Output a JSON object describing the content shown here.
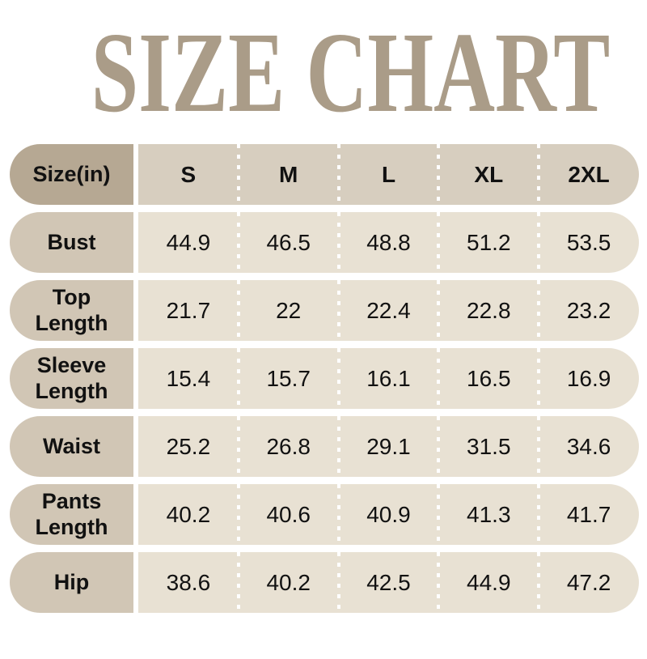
{
  "chart_data": {
    "type": "table",
    "title": "SIZE CHART",
    "corner_header": "Size(in)",
    "columns": [
      "S",
      "M",
      "L",
      "XL",
      "2XL"
    ],
    "rows": [
      {
        "label": "Bust",
        "values": [
          44.9,
          46.5,
          48.8,
          51.2,
          53.5
        ]
      },
      {
        "label": "Top Length",
        "values": [
          21.7,
          22,
          22.4,
          22.8,
          23.2
        ]
      },
      {
        "label": "Sleeve Length",
        "values": [
          15.4,
          15.7,
          16.1,
          16.5,
          16.9
        ]
      },
      {
        "label": "Waist",
        "values": [
          25.2,
          26.8,
          29.1,
          31.5,
          34.6
        ]
      },
      {
        "label": "Pants Length",
        "values": [
          40.2,
          40.6,
          40.9,
          41.3,
          41.7
        ]
      },
      {
        "label": "Hip",
        "values": [
          38.6,
          40.2,
          42.5,
          44.9,
          47.2
        ]
      }
    ]
  },
  "display": {
    "row_labels": [
      "Bust",
      "Top\nLength",
      "Sleeve\nLength",
      "Waist",
      "Pants\nLength",
      "Hip"
    ]
  },
  "colors": {
    "title_text": "#aa9c88",
    "header_label_bg": "#b6a893",
    "header_data_bg": "#d7cebf",
    "row_label_bg": "#d1c6b5",
    "row_data_bg": "#e8e1d3",
    "separator_dots": "#ffffff",
    "table_text": "#111111"
  }
}
